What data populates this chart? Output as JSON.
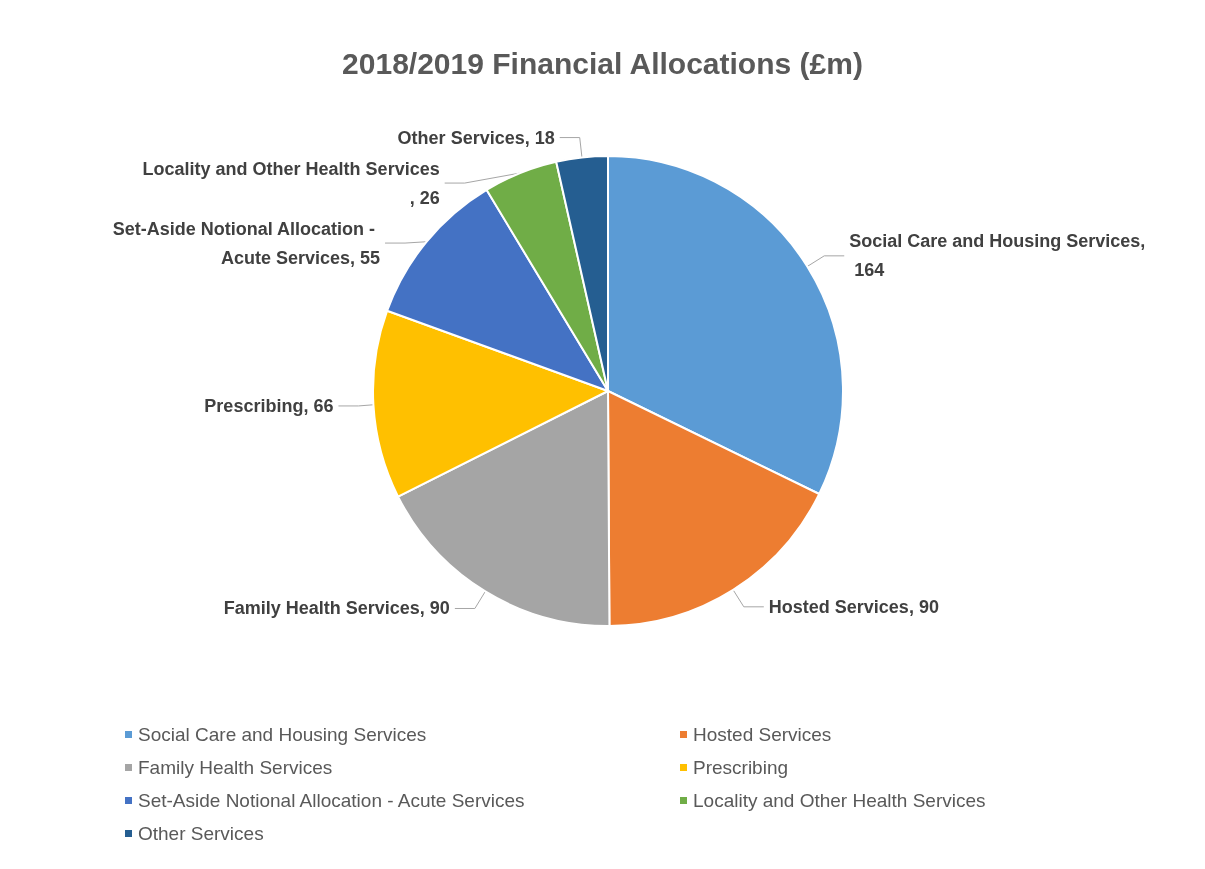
{
  "chart_data": {
    "type": "pie",
    "title": "2018/2019 Financial Allocations (£m)",
    "categories": [
      "Social Care and Housing Services",
      "Hosted Services",
      "Family Health Services",
      "Prescribing",
      "Set-Aside Notional Allocation - Acute Services",
      "Locality and Other Health Services",
      "Other Services"
    ],
    "values": [
      164,
      90,
      90,
      66,
      55,
      26,
      18
    ],
    "colors": [
      "#5b9bd5",
      "#ed7d31",
      "#a5a5a5",
      "#ffc000",
      "#4472c4",
      "#70ad47",
      "#255e91"
    ],
    "value_labels": [
      "Social Care and Housing Services, 164",
      "Hosted Services, 90",
      "Family Health Services, 90",
      "Prescribing, 66",
      "Set-Aside Notional Allocation - Acute Services, 55",
      "Locality and Other Health Services, 26",
      "Other Services, 18"
    ],
    "legend": "bottom"
  }
}
